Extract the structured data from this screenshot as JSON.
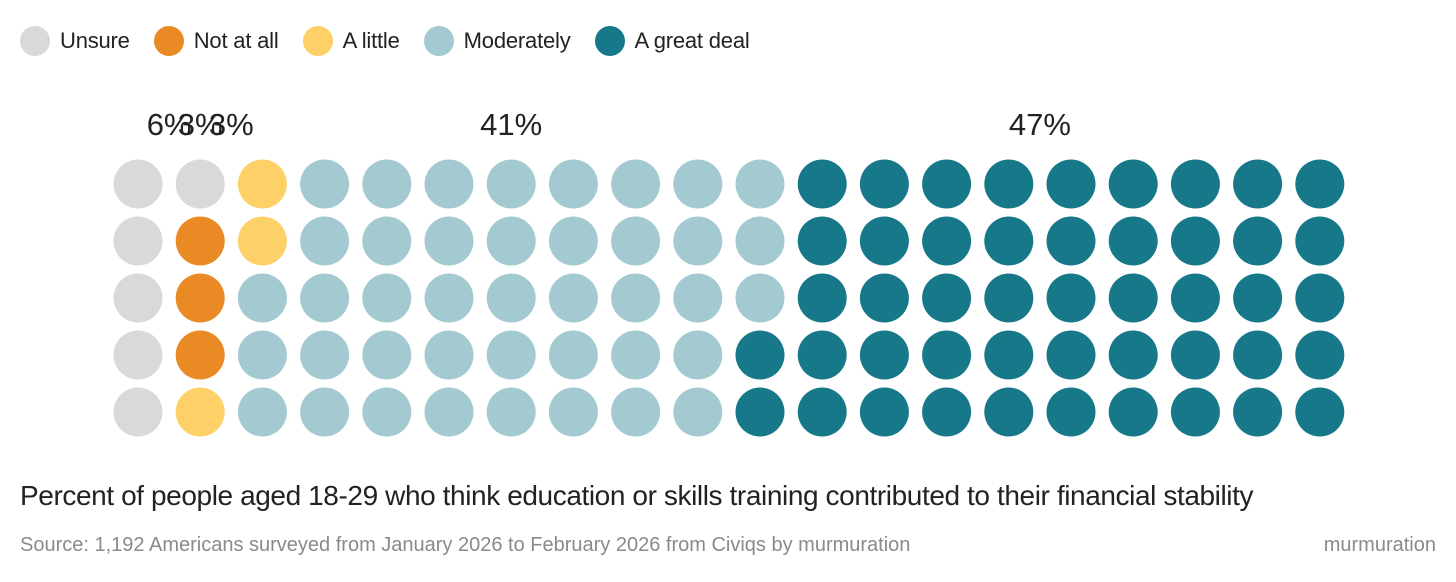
{
  "chart_data": {
    "type": "waffle",
    "title": "Percent of people aged 18-29 who think education or skills training contributed to their financial stability",
    "legend_position": "top-left",
    "grid": {
      "rows": 5,
      "columns": 20
    },
    "categories": [
      {
        "name": "Unsure",
        "value": 6,
        "label": "6%",
        "color": "#d9d9d9"
      },
      {
        "name": "Not at all",
        "value": 3,
        "label": "3%",
        "color": "#e98a25"
      },
      {
        "name": "A little",
        "value": 3,
        "label": "3%",
        "color": "#fdd068"
      },
      {
        "name": "Moderately",
        "value": 41,
        "label": "41%",
        "color": "#a3cad0"
      },
      {
        "name": "A great deal",
        "value": 47,
        "label": "47%",
        "color": "#17788a"
      }
    ]
  },
  "caption": "Percent of people aged 18-29 who think education or skills training contributed to their financial stability",
  "source": "Source: 1,192 Americans surveyed from January 2026 to February 2026 from Civiqs by murmuration",
  "brand": "murmuration"
}
